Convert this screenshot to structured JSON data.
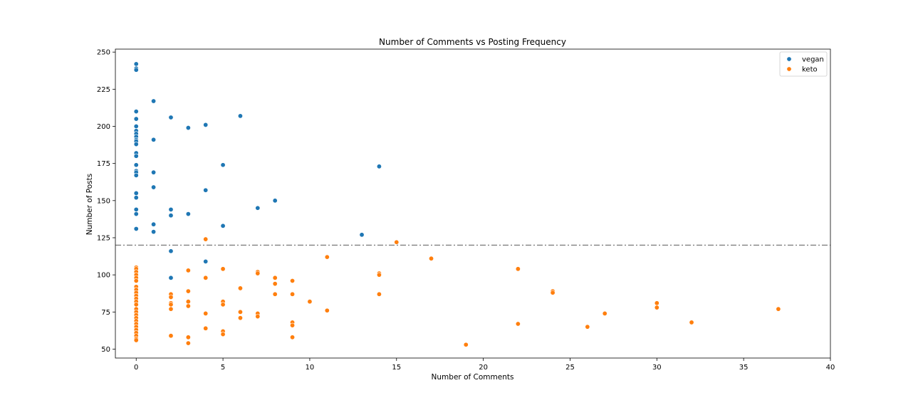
{
  "chart_data": {
    "type": "scatter",
    "title": "Number of Comments vs Posting Frequency",
    "xlabel": "Number of Comments",
    "ylabel": "Number of Posts",
    "xlim": [
      -1.2,
      40
    ],
    "ylim": [
      44,
      252
    ],
    "xticks": [
      0,
      5,
      10,
      15,
      20,
      25,
      30,
      35,
      40
    ],
    "yticks": [
      50,
      75,
      100,
      125,
      150,
      175,
      200,
      225,
      250
    ],
    "grid": false,
    "legend_position": "top-right",
    "reference_line": {
      "y": 120,
      "style": "dash-dot",
      "color": "#808080"
    },
    "series": [
      {
        "name": "vegan",
        "color": "#1f77b4",
        "points": [
          [
            0,
            242
          ],
          [
            0,
            239
          ],
          [
            0,
            238
          ],
          [
            0,
            210
          ],
          [
            0,
            205
          ],
          [
            0,
            200
          ],
          [
            0,
            197
          ],
          [
            0,
            195
          ],
          [
            0,
            193
          ],
          [
            0,
            191
          ],
          [
            0,
            190
          ],
          [
            0,
            188
          ],
          [
            0,
            182
          ],
          [
            0,
            180
          ],
          [
            0,
            174
          ],
          [
            0,
            170
          ],
          [
            0,
            169
          ],
          [
            0,
            167
          ],
          [
            0,
            155
          ],
          [
            0,
            152
          ],
          [
            0,
            144
          ],
          [
            0,
            141
          ],
          [
            0,
            131
          ],
          [
            1,
            217
          ],
          [
            1,
            191
          ],
          [
            1,
            169
          ],
          [
            1,
            159
          ],
          [
            1,
            134
          ],
          [
            1,
            129
          ],
          [
            2,
            206
          ],
          [
            2,
            144
          ],
          [
            2,
            140
          ],
          [
            2,
            116
          ],
          [
            2,
            98
          ],
          [
            3,
            199
          ],
          [
            3,
            141
          ],
          [
            4,
            201
          ],
          [
            4,
            157
          ],
          [
            4,
            109
          ],
          [
            5,
            174
          ],
          [
            5,
            133
          ],
          [
            6,
            207
          ],
          [
            7,
            145
          ],
          [
            8,
            150
          ],
          [
            13,
            127
          ],
          [
            14,
            173
          ]
        ]
      },
      {
        "name": "keto",
        "color": "#ff7f0e",
        "points": [
          [
            0,
            105
          ],
          [
            0,
            104
          ],
          [
            0,
            102
          ],
          [
            0,
            100
          ],
          [
            0,
            98
          ],
          [
            0,
            96
          ],
          [
            0,
            92
          ],
          [
            0,
            90
          ],
          [
            0,
            88
          ],
          [
            0,
            86
          ],
          [
            0,
            84
          ],
          [
            0,
            82
          ],
          [
            0,
            80
          ],
          [
            0,
            77
          ],
          [
            0,
            75
          ],
          [
            0,
            73
          ],
          [
            0,
            71
          ],
          [
            0,
            69
          ],
          [
            0,
            67
          ],
          [
            0,
            65
          ],
          [
            0,
            63
          ],
          [
            0,
            61
          ],
          [
            0,
            59
          ],
          [
            0,
            57
          ],
          [
            0,
            56
          ],
          [
            2,
            87
          ],
          [
            2,
            85
          ],
          [
            2,
            81
          ],
          [
            2,
            80
          ],
          [
            2,
            77
          ],
          [
            2,
            59
          ],
          [
            3,
            103
          ],
          [
            3,
            89
          ],
          [
            3,
            82
          ],
          [
            3,
            79
          ],
          [
            3,
            58
          ],
          [
            3,
            54
          ],
          [
            4,
            124
          ],
          [
            4,
            98
          ],
          [
            4,
            74
          ],
          [
            4,
            64
          ],
          [
            5,
            104
          ],
          [
            5,
            82
          ],
          [
            5,
            80
          ],
          [
            5,
            62
          ],
          [
            5,
            60
          ],
          [
            6,
            91
          ],
          [
            6,
            75
          ],
          [
            6,
            71
          ],
          [
            7,
            102
          ],
          [
            7,
            101
          ],
          [
            7,
            74
          ],
          [
            7,
            72
          ],
          [
            8,
            98
          ],
          [
            8,
            94
          ],
          [
            8,
            87
          ],
          [
            9,
            96
          ],
          [
            9,
            87
          ],
          [
            9,
            68
          ],
          [
            9,
            66
          ],
          [
            9,
            58
          ],
          [
            10,
            82
          ],
          [
            11,
            112
          ],
          [
            11,
            76
          ],
          [
            14,
            101
          ],
          [
            14,
            100
          ],
          [
            14,
            87
          ],
          [
            15,
            122
          ],
          [
            17,
            111
          ],
          [
            19,
            53
          ],
          [
            22,
            104
          ],
          [
            22,
            67
          ],
          [
            24,
            89
          ],
          [
            24,
            88
          ],
          [
            26,
            65
          ],
          [
            27,
            74
          ],
          [
            30,
            81
          ],
          [
            30,
            78
          ],
          [
            32,
            68
          ],
          [
            37,
            77
          ]
        ]
      }
    ]
  }
}
